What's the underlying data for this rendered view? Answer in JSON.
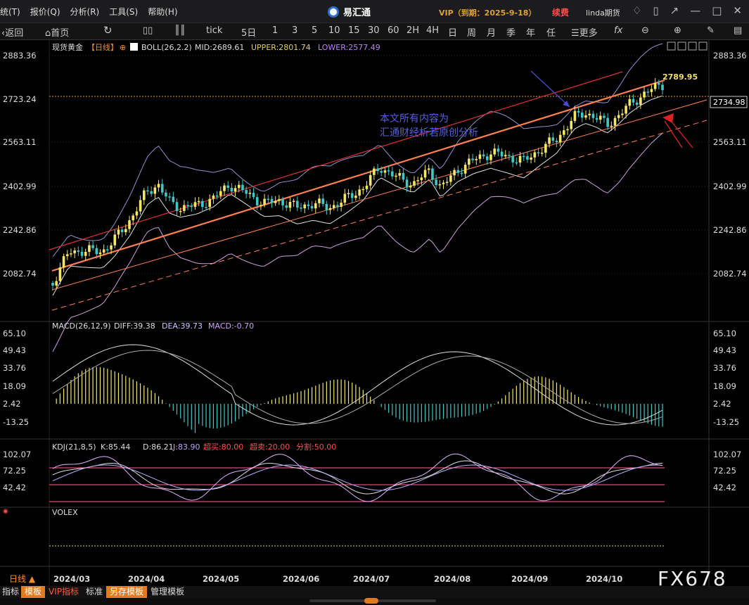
{
  "menu": [
    "统(T)",
    "报价(Q)",
    "分析(R)",
    "工具(S)",
    "帮助(H)"
  ],
  "app_title": "易汇通",
  "vip_info": "VIP（到期：2025-9-18）",
  "renew": "续费",
  "user": "linda期货",
  "toolbar": {
    "back": "返回",
    "home": "首页",
    "tick": "tick",
    "periods": [
      "5日",
      "1",
      "3",
      "5",
      "10",
      "15",
      "30",
      "60",
      "2H",
      "4H",
      "日",
      "周",
      "月",
      "季",
      "年",
      "任"
    ],
    "more": "更多"
  },
  "main_chart": {
    "symbol": "现货黄金",
    "period": "【日线】",
    "boll": "BOLL(26,2.2)",
    "mid": "MID:2689.61",
    "upper": "UPPER:2801.74",
    "lower": "LOWER:2577.49",
    "price_labels": [
      "2883.36",
      "2723.24",
      "2563.11",
      "2402.99",
      "2242.86",
      "2082.74"
    ],
    "high_label": "2789.95",
    "current_price": "2734.98",
    "watermark_line1": "本文所有内容为",
    "watermark_line2": "汇通财经析若原创分析"
  },
  "macd": {
    "title": "MACD(26,12,9)",
    "diff": "DIFF:39.38",
    "dea": "DEA:39.73",
    "macd": "MACD:-0.70",
    "labels": [
      "65.10",
      "49.43",
      "33.76",
      "18.09",
      "2.42",
      "-13.25"
    ]
  },
  "kdj": {
    "title": "KDJ(21,8,5)",
    "k": "K:85.44",
    "d": "D:86.21",
    "j": "J:83.90",
    "overbought": "超买:80.00",
    "oversold": "超卖:20.00",
    "split": "分割:50.00",
    "labels": [
      "102.07",
      "72.25",
      "42.42"
    ]
  },
  "volex": {
    "title": "VOLEX"
  },
  "x_axis": [
    "2024/03",
    "2024/04",
    "2024/05",
    "2024/06",
    "2024/07",
    "2024/08",
    "2024/09",
    "2024/10"
  ],
  "bottom": {
    "period": "日线 ▲",
    "tabs": [
      "指标",
      "模板",
      "VIP指标",
      "标准",
      "另存模板",
      "管理模板"
    ]
  },
  "watermark_brand": "FX678",
  "colors": {
    "up": "#f5e663",
    "down": "#3ec8c8",
    "boll": "#c8c8ff",
    "trend": "#ff7f50",
    "trend_red": "#e03030"
  }
}
